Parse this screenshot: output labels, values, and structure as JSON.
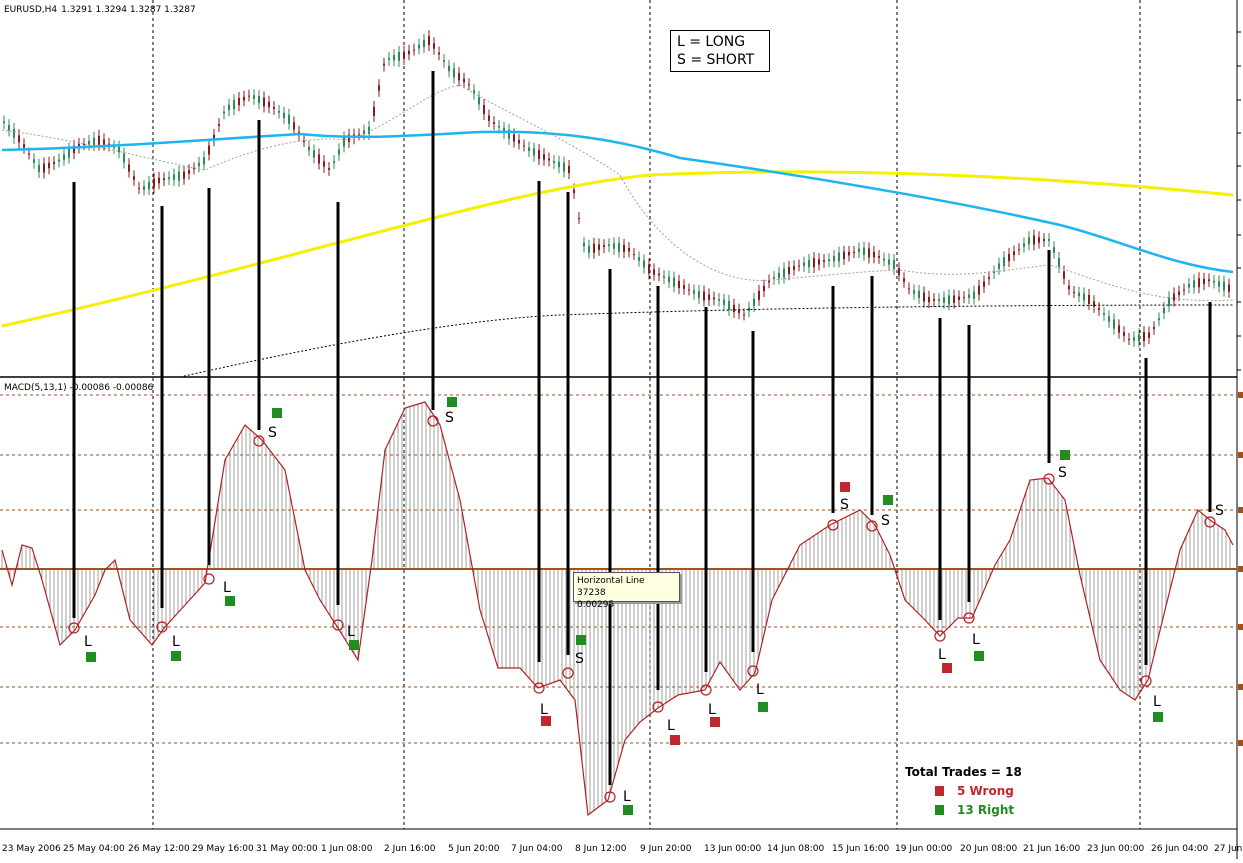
{
  "header": {
    "symbol": "EURUSD,H4",
    "quote": "1.3291 1.3294 1.3287 1.3287",
    "indicator": "MACD(5,13,1) -0.00086 -0.00086"
  },
  "legend": {
    "long": "L = LONG",
    "short": "S = SHORT"
  },
  "tooltip": {
    "line1": "Horizontal Line 37238",
    "line2": "0.00295"
  },
  "stats": {
    "total": "Total Trades = 18",
    "wrong": "5 Wrong",
    "right": "13 Right"
  },
  "colors": {
    "ma_fast_grey": "#a0a0a0",
    "ma_cyan": "#1eb4f0",
    "ma_yellow": "#f5f000",
    "ma_black": "#000000",
    "macd_line": "#b22222",
    "zero_line": "#a0521a",
    "right": "#228b22",
    "wrong": "#c0282d",
    "candle": "#2e8b57",
    "candle_down": "#8b1a1a"
  },
  "chart_data": {
    "type": "line",
    "title": "EURUSD,H4",
    "x_labels": [
      "23 May 2006",
      "25 May 04:00",
      "26 May 12:00",
      "29 May 16:00",
      "31 May 00:00",
      "1 Jun 08:00",
      "2 Jun 16:00",
      "5 Jun 20:00",
      "7 Jun 04:00",
      "8 Jun 12:00",
      "9 Jun 20:00",
      "13 Jun 00:00",
      "14 Jun 08:00",
      "15 Jun 16:00",
      "19 Jun 00:00",
      "20 Jun 08:00",
      "21 Jun 16:00",
      "23 Jun 00:00",
      "26 Jun 04:00",
      "27 Jun"
    ],
    "macd": {
      "name": "MACD(5,13,1)",
      "last_value": -0.00086,
      "horizontal_line": 0.00295
    },
    "trades": [
      {
        "type": "L",
        "result": "right"
      },
      {
        "type": "L",
        "result": "right"
      },
      {
        "type": "L",
        "result": "right"
      },
      {
        "type": "S",
        "result": "right"
      },
      {
        "type": "L",
        "result": "right"
      },
      {
        "type": "S",
        "result": "right"
      },
      {
        "type": "L",
        "result": "wrong"
      },
      {
        "type": "S",
        "result": "right"
      },
      {
        "type": "L",
        "result": "right"
      },
      {
        "type": "L",
        "result": "wrong"
      },
      {
        "type": "L",
        "result": "wrong"
      },
      {
        "type": "L",
        "result": "right"
      },
      {
        "type": "S",
        "result": "wrong"
      },
      {
        "type": "S",
        "result": "right"
      },
      {
        "type": "L",
        "result": "wrong"
      },
      {
        "type": "L",
        "result": "right"
      },
      {
        "type": "S",
        "result": "right"
      },
      {
        "type": "L",
        "result": "right"
      }
    ]
  }
}
